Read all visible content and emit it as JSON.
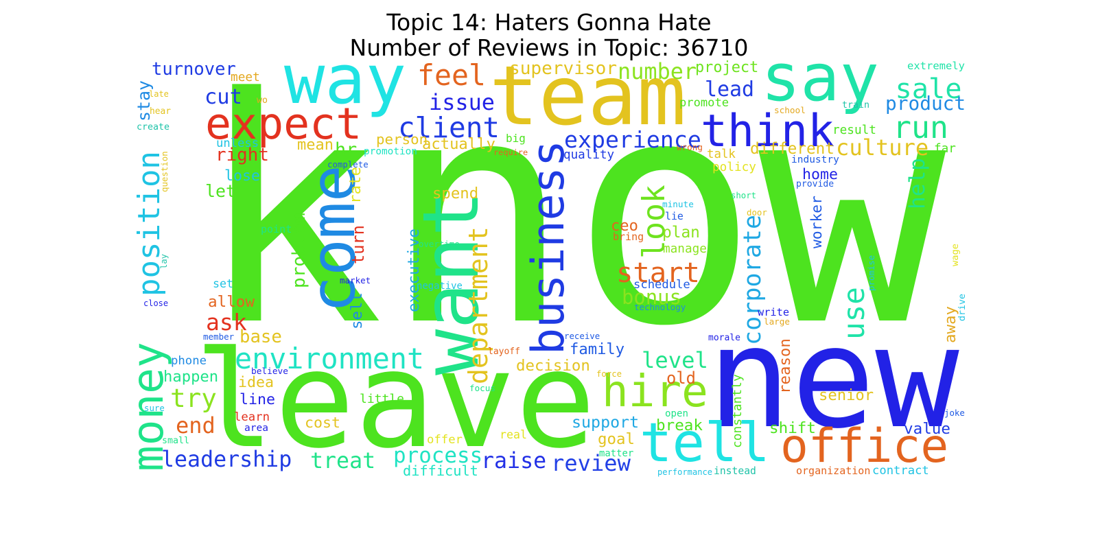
{
  "title": {
    "line1": "Topic 14: Haters Gonna Hate",
    "line2": "Number of Reviews in Topic: 36710"
  },
  "words": [
    {
      "text": "know",
      "color": "#4de31f"
    },
    {
      "text": "leave",
      "color": "#4de31f"
    },
    {
      "text": "new",
      "color": "#2222e6"
    },
    {
      "text": "team",
      "color": "#e3c31f"
    },
    {
      "text": "say",
      "color": "#1fe3a8"
    },
    {
      "text": "way",
      "color": "#1fe3e3"
    },
    {
      "text": "want",
      "color": "#1fe389"
    },
    {
      "text": "come",
      "color": "#1f8ae3"
    },
    {
      "text": "business",
      "color": "#1f3be3"
    },
    {
      "text": "tell",
      "color": "#1fe3e3"
    },
    {
      "text": "office",
      "color": "#e3641f"
    },
    {
      "text": "expect",
      "color": "#e3321f"
    },
    {
      "text": "think",
      "color": "#2222e6"
    },
    {
      "text": "hire",
      "color": "#8be31f"
    },
    {
      "text": "money",
      "color": "#1fe389"
    },
    {
      "text": "position",
      "color": "#1fc3e3"
    },
    {
      "text": "environment",
      "color": "#1fe3c3"
    },
    {
      "text": "client",
      "color": "#1f3be3"
    },
    {
      "text": "start",
      "color": "#e3641f"
    },
    {
      "text": "feel",
      "color": "#e3641f"
    },
    {
      "text": "department",
      "color": "#e3c31f"
    },
    {
      "text": "level",
      "color": "#1fe389"
    },
    {
      "text": "run",
      "color": "#1fe389"
    },
    {
      "text": "sale",
      "color": "#1fe3a8"
    },
    {
      "text": "look",
      "color": "#6ee31f"
    },
    {
      "text": "corporate",
      "color": "#1fa8e3"
    },
    {
      "text": "experience",
      "color": "#1f3be3"
    },
    {
      "text": "culture",
      "color": "#e3c31f"
    },
    {
      "text": "use",
      "color": "#1fe3a8"
    },
    {
      "text": "leadership",
      "color": "#1f3be3"
    },
    {
      "text": "try",
      "color": "#8be31f"
    },
    {
      "text": "process",
      "color": "#1fe3c3"
    },
    {
      "text": "review",
      "color": "#2240e6"
    },
    {
      "text": "raise",
      "color": "#2230e6"
    },
    {
      "text": "treat",
      "color": "#1fe389"
    },
    {
      "text": "issue",
      "color": "#2222e6"
    },
    {
      "text": "product",
      "color": "#1f8ae3"
    },
    {
      "text": "cut",
      "color": "#1f3be3"
    },
    {
      "text": "ask",
      "color": "#e3321f"
    },
    {
      "text": "end",
      "color": "#e3641f"
    },
    {
      "text": "number",
      "color": "#8be31f"
    },
    {
      "text": "lead",
      "color": "#1f3be3"
    },
    {
      "text": "turnover",
      "color": "#1f3be3"
    },
    {
      "text": "supervisor",
      "color": "#e3c31f"
    },
    {
      "text": "project",
      "color": "#6ee31f"
    },
    {
      "text": "person",
      "color": "#e3c31f"
    },
    {
      "text": "actually",
      "color": "#e3c31f"
    },
    {
      "text": "hr",
      "color": "#4de31f"
    },
    {
      "text": "bonus",
      "color": "#8be31f"
    },
    {
      "text": "plan",
      "color": "#8be31f"
    },
    {
      "text": "help",
      "color": "#1fe389"
    },
    {
      "text": "right",
      "color": "#e3321f"
    },
    {
      "text": "stay",
      "color": "#1f8ae3"
    },
    {
      "text": "mean",
      "color": "#e3c31f"
    },
    {
      "text": "lose",
      "color": "#1fc3e3"
    },
    {
      "text": "let",
      "color": "#4de31f"
    },
    {
      "text": "big",
      "color": "#4de31f"
    },
    {
      "text": "different",
      "color": "#e3c31f"
    },
    {
      "text": "talk",
      "color": "#e3c31f"
    },
    {
      "text": "home",
      "color": "#2222e6"
    },
    {
      "text": "worker",
      "color": "#1f5ae3"
    },
    {
      "text": "family",
      "color": "#1f5ae3"
    },
    {
      "text": "decision",
      "color": "#e3c31f"
    },
    {
      "text": "support",
      "color": "#1fa8e3"
    },
    {
      "text": "shift",
      "color": "#4de31f"
    },
    {
      "text": "value",
      "color": "#1f3be3"
    },
    {
      "text": "senior",
      "color": "#e3c31f"
    },
    {
      "text": "goal",
      "color": "#e3c31f"
    },
    {
      "text": "break",
      "color": "#4de31f"
    },
    {
      "text": "old",
      "color": "#e3641f"
    },
    {
      "text": "problem",
      "color": "#4de31f"
    },
    {
      "text": "executive",
      "color": "#1fa8e3"
    },
    {
      "text": "sell",
      "color": "#1f8ae3"
    },
    {
      "text": "turn",
      "color": "#e3321f"
    },
    {
      "text": "spend",
      "color": "#e3c31f"
    },
    {
      "text": "rate",
      "color": "#e3e31f"
    },
    {
      "text": "ceo",
      "color": "#e3641f"
    },
    {
      "text": "schedule",
      "color": "#1f5ae3"
    },
    {
      "text": "allow",
      "color": "#e3641f"
    },
    {
      "text": "base",
      "color": "#e3c31f"
    },
    {
      "text": "idea",
      "color": "#e3c31f"
    },
    {
      "text": "line",
      "color": "#2222e6"
    },
    {
      "text": "happen",
      "color": "#1fe389"
    },
    {
      "text": "phone",
      "color": "#1f8ae3"
    },
    {
      "text": "cost",
      "color": "#e3c31f"
    },
    {
      "text": "difficult",
      "color": "#1fe3c3"
    },
    {
      "text": "offer",
      "color": "#e3e31f"
    },
    {
      "text": "real",
      "color": "#e3e31f"
    },
    {
      "text": "contract",
      "color": "#1fc3e3"
    },
    {
      "text": "organization",
      "color": "#e3641f"
    },
    {
      "text": "instead",
      "color": "#1fc3a8"
    },
    {
      "text": "constantly",
      "color": "#4de31f"
    },
    {
      "text": "reason",
      "color": "#e3641f"
    },
    {
      "text": "away",
      "color": "#e3a81f"
    },
    {
      "text": "policy",
      "color": "#e3e31f"
    },
    {
      "text": "quality",
      "color": "#1f3be3"
    },
    {
      "text": "industry",
      "color": "#1f5ae3"
    },
    {
      "text": "far",
      "color": "#4de31f"
    },
    {
      "text": "result",
      "color": "#4de31f"
    },
    {
      "text": "promote",
      "color": "#4de31f"
    },
    {
      "text": "extremely",
      "color": "#1fe3a8"
    },
    {
      "text": "train",
      "color": "#1fc3a8"
    },
    {
      "text": "school",
      "color": "#e3a81f"
    },
    {
      "text": "meet",
      "color": "#e3a81f"
    },
    {
      "text": "late",
      "color": "#e3c31f"
    },
    {
      "text": "wo",
      "color": "#e3a81f"
    },
    {
      "text": "hear",
      "color": "#e3c31f"
    },
    {
      "text": "create",
      "color": "#1fc3a8"
    },
    {
      "text": "unless",
      "color": "#1fc3e3"
    },
    {
      "text": "promotion",
      "color": "#1fe3c3"
    },
    {
      "text": "require",
      "color": "#e3641f"
    },
    {
      "text": "wrong",
      "color": "#e3641f"
    },
    {
      "text": "complete",
      "color": "#1f5ae3"
    },
    {
      "text": "question",
      "color": "#e3c31f"
    },
    {
      "text": "point",
      "color": "#1fe389"
    },
    {
      "text": "lay",
      "color": "#1fc3a8"
    },
    {
      "text": "set",
      "color": "#1fc3e3"
    },
    {
      "text": "close",
      "color": "#2222e6"
    },
    {
      "text": "member",
      "color": "#1f5ae3"
    },
    {
      "text": "market",
      "color": "#2222e6"
    },
    {
      "text": "overtime",
      "color": "#1fe389"
    },
    {
      "text": "negative",
      "color": "#1fc3e3"
    },
    {
      "text": "believe",
      "color": "#2222e6"
    },
    {
      "text": "layoff",
      "color": "#e3641f"
    },
    {
      "text": "receive",
      "color": "#1f5ae3"
    },
    {
      "text": "morale",
      "color": "#2222e6"
    },
    {
      "text": "write",
      "color": "#2222e6"
    },
    {
      "text": "large",
      "color": "#e3a81f"
    },
    {
      "text": "minute",
      "color": "#1fc3e3"
    },
    {
      "text": "lie",
      "color": "#1f5ae3"
    },
    {
      "text": "bring",
      "color": "#e3641f"
    },
    {
      "text": "manage",
      "color": "#8be31f"
    },
    {
      "text": "technology",
      "color": "#1f8ae3"
    },
    {
      "text": "short",
      "color": "#1fe389"
    },
    {
      "text": "door",
      "color": "#e3c31f"
    },
    {
      "text": "provide",
      "color": "#1f5ae3"
    },
    {
      "text": "wage",
      "color": "#e3e31f"
    },
    {
      "text": "promise",
      "color": "#1fc3e3"
    },
    {
      "text": "drive",
      "color": "#1fc3e3"
    },
    {
      "text": "joke",
      "color": "#1f5ae3"
    },
    {
      "text": "force",
      "color": "#e3c31f"
    },
    {
      "text": "focus",
      "color": "#1fe389"
    },
    {
      "text": "little",
      "color": "#4de31f"
    },
    {
      "text": "learn",
      "color": "#e3321f"
    },
    {
      "text": "area",
      "color": "#2222e6"
    },
    {
      "text": "sure",
      "color": "#1fc3e3"
    },
    {
      "text": "small",
      "color": "#1fe389"
    },
    {
      "text": "open",
      "color": "#1fe389"
    },
    {
      "text": "matter",
      "color": "#1fe389"
    },
    {
      "text": "performance",
      "color": "#1fc3e3"
    }
  ]
}
